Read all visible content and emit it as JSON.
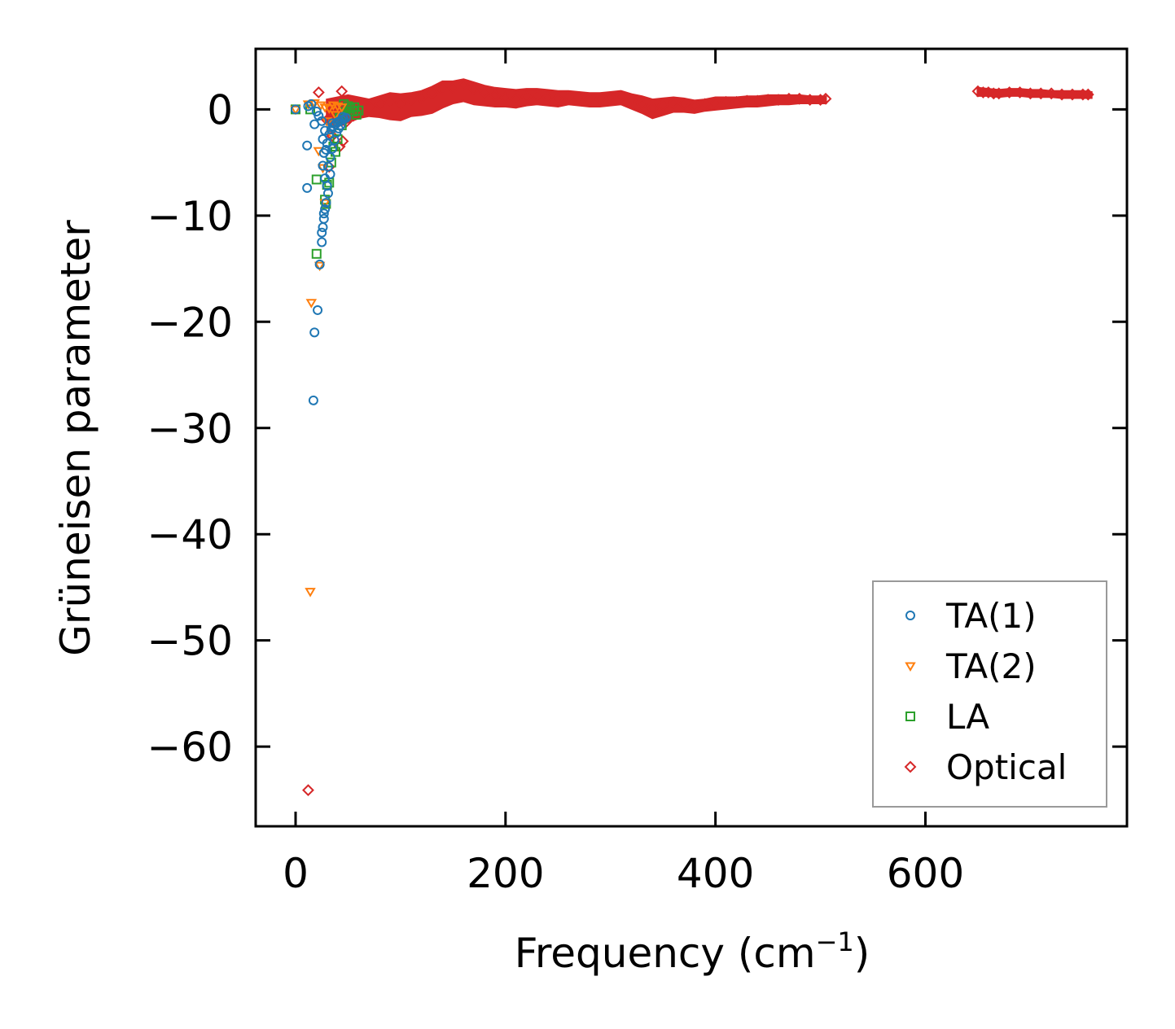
{
  "chart_data": {
    "type": "scatter",
    "xlabel": "Frequency (cm",
    "xlabel_superscript": "−1",
    "xlabel_suffix": ")",
    "ylabel": "Grüneisen parameter",
    "xlim": [
      -38,
      792
    ],
    "ylim": [
      -67.5,
      5.7
    ],
    "x_ticks": [
      0,
      200,
      400,
      600
    ],
    "x_tick_labels": [
      "0",
      "200",
      "400",
      "600"
    ],
    "y_ticks": [
      0,
      -10,
      -20,
      -30,
      -40,
      -50,
      -60
    ],
    "y_tick_labels": [
      "0",
      "−10",
      "−20",
      "−30",
      "−40",
      "−50",
      "−60"
    ],
    "legend_position": "lower-right",
    "series": [
      {
        "name": "TA(1)",
        "marker": "circle",
        "color": "#1f77b4",
        "points": [
          [
            0,
            0
          ],
          [
            12,
            0.3
          ],
          [
            15,
            0.5
          ],
          [
            18,
            -1.4
          ],
          [
            20,
            -0.2
          ],
          [
            22,
            -0.6
          ],
          [
            11,
            -3.4
          ],
          [
            11,
            -7.4
          ],
          [
            25,
            -1.1
          ],
          [
            26,
            -2.8
          ],
          [
            27,
            -4.1
          ],
          [
            26,
            -5.3
          ],
          [
            28,
            -6.5
          ],
          [
            30,
            -7.2
          ],
          [
            31,
            -7.9
          ],
          [
            29,
            -8.8
          ],
          [
            28,
            -9.4
          ],
          [
            27,
            -9.8
          ],
          [
            27,
            -10.3
          ],
          [
            26,
            -11.1
          ],
          [
            25,
            -11.6
          ],
          [
            25,
            -12.5
          ],
          [
            23,
            -14.6
          ],
          [
            21,
            -18.9
          ],
          [
            18,
            -21.0
          ],
          [
            17,
            -27.4
          ],
          [
            30,
            -3.2
          ],
          [
            32,
            -2.4
          ],
          [
            34,
            -1.9
          ],
          [
            36,
            -1.6
          ],
          [
            38,
            -1.4
          ],
          [
            40,
            -1.2
          ],
          [
            42,
            -1.1
          ],
          [
            44,
            -1.0
          ],
          [
            46,
            -0.9
          ],
          [
            48,
            -0.8
          ],
          [
            33,
            -4.5
          ],
          [
            35,
            -3.7
          ],
          [
            37,
            -2.9
          ],
          [
            31,
            -5.4
          ],
          [
            33,
            -6.1
          ],
          [
            39,
            -2.2
          ],
          [
            41,
            -1.8
          ],
          [
            43,
            -1.5
          ],
          [
            29,
            -3.8
          ],
          [
            28,
            -2.0
          ],
          [
            35,
            -1.3
          ],
          [
            45,
            -0.7
          ]
        ]
      },
      {
        "name": "TA(2)",
        "marker": "triangle-down",
        "color": "#ff7f0e",
        "points": [
          [
            0,
            0
          ],
          [
            12,
            0.5
          ],
          [
            18,
            0.6
          ],
          [
            24,
            0.4
          ],
          [
            28,
            0.2
          ],
          [
            32,
            0.1
          ],
          [
            36,
            0.4
          ],
          [
            40,
            0.3
          ],
          [
            44,
            0.2
          ],
          [
            38,
            -0.5
          ],
          [
            30,
            -1.1
          ],
          [
            22,
            -3.9
          ],
          [
            26,
            -5.5
          ],
          [
            28,
            -8.8
          ],
          [
            23,
            -14.7
          ],
          [
            15,
            -18.2
          ],
          [
            14,
            -45.4
          ],
          [
            34,
            -2.3
          ],
          [
            36,
            -1.3
          ]
        ]
      },
      {
        "name": "LA",
        "marker": "square",
        "color": "#2ca02c",
        "points": [
          [
            0,
            0
          ],
          [
            14,
            0
          ],
          [
            20,
            -6.6
          ],
          [
            28,
            -8.5
          ],
          [
            29,
            -8.9
          ],
          [
            32,
            -6.9
          ],
          [
            20,
            -13.6
          ],
          [
            36,
            -3.5
          ],
          [
            40,
            -2.8
          ],
          [
            44,
            -1.5
          ],
          [
            48,
            -0.6
          ],
          [
            50,
            0.3
          ],
          [
            52,
            0.1
          ],
          [
            55,
            -0.2
          ],
          [
            58,
            -0.5
          ],
          [
            46,
            0.5
          ],
          [
            42,
            -0.8
          ],
          [
            56,
            0.2
          ],
          [
            60,
            -0.1
          ],
          [
            38,
            -4.0
          ],
          [
            34,
            -5.0
          ],
          [
            30,
            -7.1
          ]
        ]
      },
      {
        "name": "Optical",
        "marker": "diamond",
        "color": "#d62728",
        "points": [
          [
            12,
            -64.1
          ],
          [
            22,
            1.6
          ],
          [
            34,
            -0.2
          ],
          [
            44,
            1.7
          ],
          [
            30,
            -1.0
          ],
          [
            35,
            -2.5
          ],
          [
            42,
            -3.5
          ],
          [
            45,
            -3.0
          ],
          [
            32,
            -5.4
          ],
          [
            48,
            -1.2
          ],
          [
            55,
            -0.6
          ],
          [
            60,
            -0.4
          ],
          [
            70,
            0.2
          ],
          [
            80,
            0.5
          ],
          [
            90,
            0.8
          ],
          [
            100,
            0.6
          ],
          [
            110,
            0.9
          ],
          [
            120,
            1.1
          ],
          [
            130,
            1.5
          ],
          [
            140,
            1.9
          ],
          [
            150,
            2.0
          ],
          [
            160,
            2.3
          ],
          [
            170,
            1.9
          ],
          [
            180,
            1.6
          ],
          [
            190,
            1.3
          ],
          [
            200,
            1.1
          ],
          [
            210,
            1.0
          ],
          [
            220,
            1.2
          ],
          [
            230,
            1.3
          ],
          [
            240,
            1.1
          ],
          [
            250,
            1.0
          ],
          [
            260,
            1.2
          ],
          [
            270,
            1.1
          ],
          [
            280,
            0.9
          ],
          [
            290,
            1.0
          ],
          [
            300,
            1.1
          ],
          [
            310,
            1.2
          ],
          [
            320,
            0.9
          ],
          [
            330,
            0.5
          ],
          [
            340,
            0.1
          ],
          [
            350,
            0.4
          ],
          [
            360,
            0.6
          ],
          [
            370,
            0.5
          ],
          [
            380,
            0.3
          ],
          [
            390,
            0.5
          ],
          [
            400,
            0.6
          ],
          [
            410,
            0.7
          ],
          [
            420,
            0.7
          ],
          [
            430,
            0.8
          ],
          [
            440,
            0.8
          ],
          [
            450,
            0.9
          ],
          [
            460,
            0.9
          ],
          [
            470,
            1.0
          ],
          [
            480,
            1.0
          ],
          [
            490,
            0.9
          ],
          [
            500,
            0.9
          ],
          [
            505,
            1.0
          ],
          [
            650,
            1.7
          ],
          [
            655,
            1.6
          ],
          [
            660,
            1.6
          ],
          [
            665,
            1.5
          ],
          [
            670,
            1.5
          ],
          [
            680,
            1.6
          ],
          [
            690,
            1.6
          ],
          [
            700,
            1.5
          ],
          [
            710,
            1.5
          ],
          [
            720,
            1.5
          ],
          [
            730,
            1.4
          ],
          [
            740,
            1.4
          ],
          [
            750,
            1.4
          ],
          [
            755,
            1.4
          ]
        ]
      }
    ],
    "band": {
      "series": "Optical",
      "x": [
        30,
        40,
        50,
        60,
        70,
        80,
        90,
        100,
        110,
        120,
        130,
        140,
        150,
        160,
        170,
        180,
        190,
        200,
        210,
        220,
        230,
        240,
        250,
        260,
        270,
        280,
        290,
        300,
        310,
        320,
        330,
        340,
        350,
        360,
        370,
        380,
        390,
        400,
        410,
        420,
        430,
        440,
        450,
        460,
        470,
        480,
        490,
        500,
        505
      ],
      "upper": [
        0.9,
        1.1,
        1.3,
        1.1,
        0.9,
        1.2,
        1.5,
        1.4,
        1.5,
        1.7,
        2.1,
        2.6,
        2.6,
        2.8,
        2.5,
        2.2,
        2.0,
        1.9,
        1.8,
        1.9,
        1.9,
        1.8,
        1.7,
        1.7,
        1.6,
        1.5,
        1.5,
        1.6,
        1.7,
        1.4,
        1.2,
        0.9,
        1.0,
        1.1,
        1.0,
        0.8,
        0.9,
        1.1,
        1.1,
        1.1,
        1.2,
        1.2,
        1.3,
        1.3,
        1.3,
        1.3,
        1.2,
        1.2,
        1.2
      ],
      "lower": [
        -1.4,
        -1.6,
        -1.2,
        -0.8,
        -0.6,
        -0.7,
        -0.9,
        -1.0,
        -0.6,
        -0.5,
        -0.3,
        0.2,
        0.6,
        0.8,
        0.5,
        0.4,
        0.3,
        0.3,
        0.2,
        0.4,
        0.5,
        0.4,
        0.3,
        0.5,
        0.4,
        0.3,
        0.3,
        0.4,
        0.5,
        0.1,
        -0.3,
        -0.8,
        -0.5,
        -0.2,
        -0.2,
        -0.3,
        -0.1,
        0.0,
        0.1,
        0.2,
        0.3,
        0.3,
        0.4,
        0.5,
        0.5,
        0.6,
        0.6,
        0.6,
        0.6
      ]
    },
    "band2": {
      "series": "Optical",
      "x": [
        650,
        660,
        670,
        680,
        690,
        700,
        710,
        720,
        730,
        740,
        750,
        758
      ],
      "upper": [
        2.0,
        1.9,
        1.8,
        1.9,
        1.9,
        1.8,
        1.8,
        1.7,
        1.7,
        1.7,
        1.7,
        1.6
      ],
      "lower": [
        1.3,
        1.3,
        1.2,
        1.3,
        1.3,
        1.2,
        1.2,
        1.2,
        1.1,
        1.1,
        1.1,
        1.1
      ]
    }
  }
}
